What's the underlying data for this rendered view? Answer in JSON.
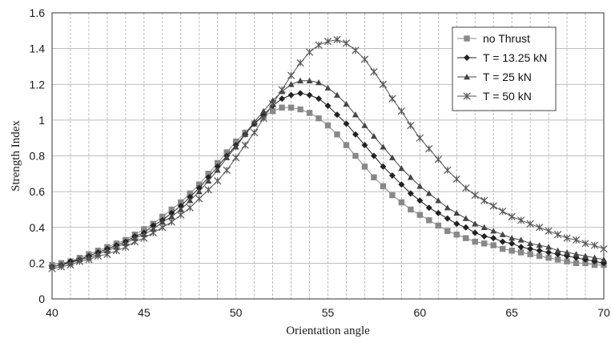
{
  "chart_data": {
    "type": "line",
    "title": "",
    "xlabel": "Orientation angle",
    "ylabel": "Strength Index",
    "xlim": [
      40,
      70
    ],
    "ylim": [
      0,
      1.6
    ],
    "x_ticks": [
      "40",
      "45",
      "50",
      "55",
      "60",
      "65",
      "70"
    ],
    "y_ticks": [
      "0",
      "0.2",
      "0.4",
      "0.6",
      "0.8",
      "1",
      "1.2",
      "1.4",
      "1.6"
    ],
    "grid": true,
    "legend_position": "top-right",
    "x": [
      40,
      40.5,
      41,
      41.5,
      42,
      42.5,
      43,
      43.5,
      44,
      44.5,
      45,
      45.5,
      46,
      46.5,
      47,
      47.5,
      48,
      48.5,
      49,
      49.5,
      50,
      50.5,
      51,
      51.5,
      52,
      52.5,
      53,
      53.5,
      54,
      54.5,
      55,
      55.5,
      56,
      56.5,
      57,
      57.5,
      58,
      58.5,
      59,
      59.5,
      60,
      60.5,
      61,
      61.5,
      62,
      62.5,
      63,
      63.5,
      64,
      64.5,
      65,
      65.5,
      66,
      66.5,
      67,
      67.5,
      68,
      68.5,
      69,
      69.5,
      70
    ],
    "series": [
      {
        "name": "no Thrust",
        "marker": "square",
        "values": [
          0.19,
          0.2,
          0.21,
          0.23,
          0.25,
          0.27,
          0.29,
          0.31,
          0.33,
          0.36,
          0.39,
          0.42,
          0.46,
          0.5,
          0.54,
          0.59,
          0.64,
          0.7,
          0.76,
          0.82,
          0.88,
          0.93,
          0.98,
          1.02,
          1.05,
          1.07,
          1.07,
          1.06,
          1.04,
          1.01,
          0.97,
          0.92,
          0.86,
          0.8,
          0.74,
          0.68,
          0.63,
          0.58,
          0.54,
          0.5,
          0.47,
          0.44,
          0.41,
          0.38,
          0.36,
          0.34,
          0.32,
          0.31,
          0.3,
          0.28,
          0.27,
          0.26,
          0.25,
          0.24,
          0.23,
          0.22,
          0.21,
          0.2,
          0.2,
          0.19,
          0.19
        ]
      },
      {
        "name": "T = 13.25 kN",
        "marker": "diamond",
        "values": [
          0.18,
          0.19,
          0.21,
          0.22,
          0.24,
          0.26,
          0.28,
          0.3,
          0.32,
          0.35,
          0.37,
          0.41,
          0.44,
          0.48,
          0.52,
          0.57,
          0.62,
          0.68,
          0.74,
          0.8,
          0.86,
          0.92,
          0.98,
          1.03,
          1.08,
          1.12,
          1.14,
          1.15,
          1.14,
          1.12,
          1.08,
          1.03,
          0.98,
          0.92,
          0.86,
          0.8,
          0.74,
          0.69,
          0.64,
          0.59,
          0.55,
          0.51,
          0.48,
          0.45,
          0.42,
          0.4,
          0.37,
          0.35,
          0.34,
          0.32,
          0.31,
          0.29,
          0.28,
          0.27,
          0.26,
          0.25,
          0.24,
          0.23,
          0.22,
          0.21,
          0.2
        ]
      },
      {
        "name": "T = 25 kN",
        "marker": "triangle",
        "values": [
          0.18,
          0.19,
          0.2,
          0.22,
          0.23,
          0.25,
          0.27,
          0.29,
          0.31,
          0.34,
          0.36,
          0.39,
          0.43,
          0.46,
          0.5,
          0.55,
          0.6,
          0.66,
          0.72,
          0.79,
          0.85,
          0.92,
          0.99,
          1.05,
          1.11,
          1.16,
          1.2,
          1.22,
          1.22,
          1.21,
          1.18,
          1.14,
          1.09,
          1.03,
          0.97,
          0.91,
          0.85,
          0.79,
          0.73,
          0.68,
          0.63,
          0.59,
          0.55,
          0.51,
          0.48,
          0.45,
          0.42,
          0.4,
          0.38,
          0.36,
          0.34,
          0.33,
          0.31,
          0.3,
          0.29,
          0.27,
          0.26,
          0.25,
          0.24,
          0.23,
          0.22
        ]
      },
      {
        "name": "T = 50 kN",
        "marker": "star",
        "values": [
          0.17,
          0.18,
          0.19,
          0.21,
          0.22,
          0.24,
          0.25,
          0.27,
          0.29,
          0.32,
          0.34,
          0.37,
          0.4,
          0.43,
          0.47,
          0.51,
          0.56,
          0.61,
          0.66,
          0.72,
          0.79,
          0.86,
          0.93,
          1.01,
          1.09,
          1.17,
          1.25,
          1.32,
          1.38,
          1.42,
          1.44,
          1.45,
          1.43,
          1.39,
          1.34,
          1.27,
          1.2,
          1.12,
          1.05,
          0.97,
          0.9,
          0.84,
          0.78,
          0.72,
          0.67,
          0.62,
          0.58,
          0.55,
          0.52,
          0.49,
          0.46,
          0.44,
          0.42,
          0.4,
          0.38,
          0.36,
          0.34,
          0.33,
          0.31,
          0.3,
          0.28
        ]
      }
    ]
  },
  "colors": {
    "no_thrust": "#888888",
    "t13": "#222222",
    "t25": "#444444",
    "t50": "#555555",
    "grid": "#a8a8a8",
    "axis": "#333333"
  }
}
